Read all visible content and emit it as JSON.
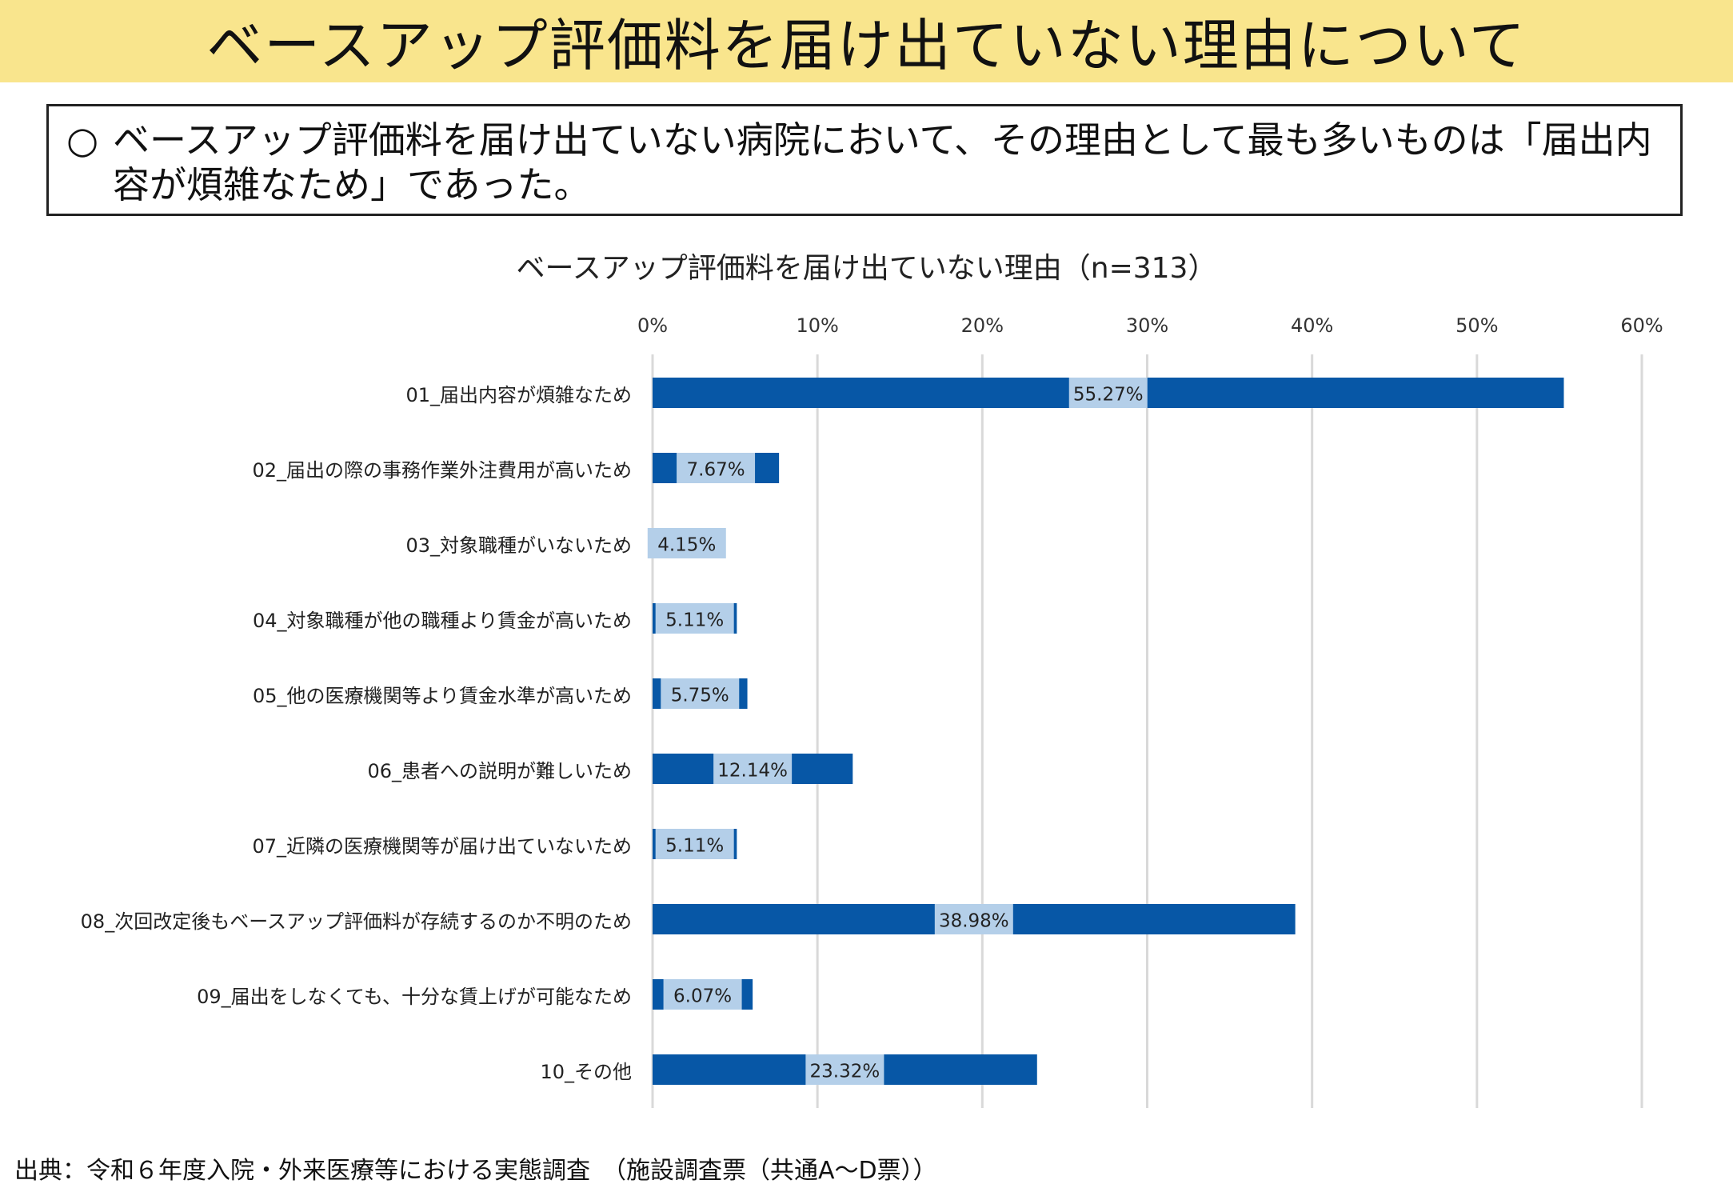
{
  "title": "ベースアップ評価料を届け出ていない理由について",
  "summary": {
    "bullet": "○",
    "text": "ベースアップ評価料を届け出ていない病院において、その理由として最も多いものは「届出内容が煩雑なため」であった。"
  },
  "source": "出典：令和６年度入院・外来医療等における実態調査　（施設調査票（共通A～D票））",
  "colors": {
    "bar": "#0757a6",
    "label_bg": "#b4cfe9",
    "grid": "#d9d9d9",
    "banner": "#f9e58d"
  },
  "chart_data": {
    "type": "bar",
    "orientation": "horizontal",
    "title": "ベースアップ評価料を届け出ていない理由（n=313）",
    "xlim": [
      0,
      60
    ],
    "x_ticks": [
      "0%",
      "10%",
      "20%",
      "30%",
      "40%",
      "50%",
      "60%"
    ],
    "x_tick_values": [
      0,
      10,
      20,
      30,
      40,
      50,
      60
    ],
    "grid": true,
    "categories": [
      "01_届出内容が煩雑なため",
      "02_届出の際の事務作業外注費用が高いため",
      "03_対象職種がいないため",
      "04_対象職種が他の職種より賃金が高いため",
      "05_他の医療機関等より賃金水準が高いため",
      "06_患者への説明が難しいため",
      "07_近隣の医療機関等が届け出ていないため",
      "08_次回改定後もベースアップ評価料が存続するのか不明のため",
      "09_届出をしなくても、十分な賃上げが可能なため",
      "10_その他"
    ],
    "values": [
      55.27,
      7.67,
      4.15,
      5.11,
      5.75,
      12.14,
      5.11,
      38.98,
      6.07,
      23.32
    ],
    "data_labels": [
      "55.27%",
      "7.67%",
      "4.15%",
      "5.11%",
      "5.75%",
      "12.14%",
      "5.11%",
      "38.98%",
      "6.07%",
      "23.32%"
    ]
  }
}
